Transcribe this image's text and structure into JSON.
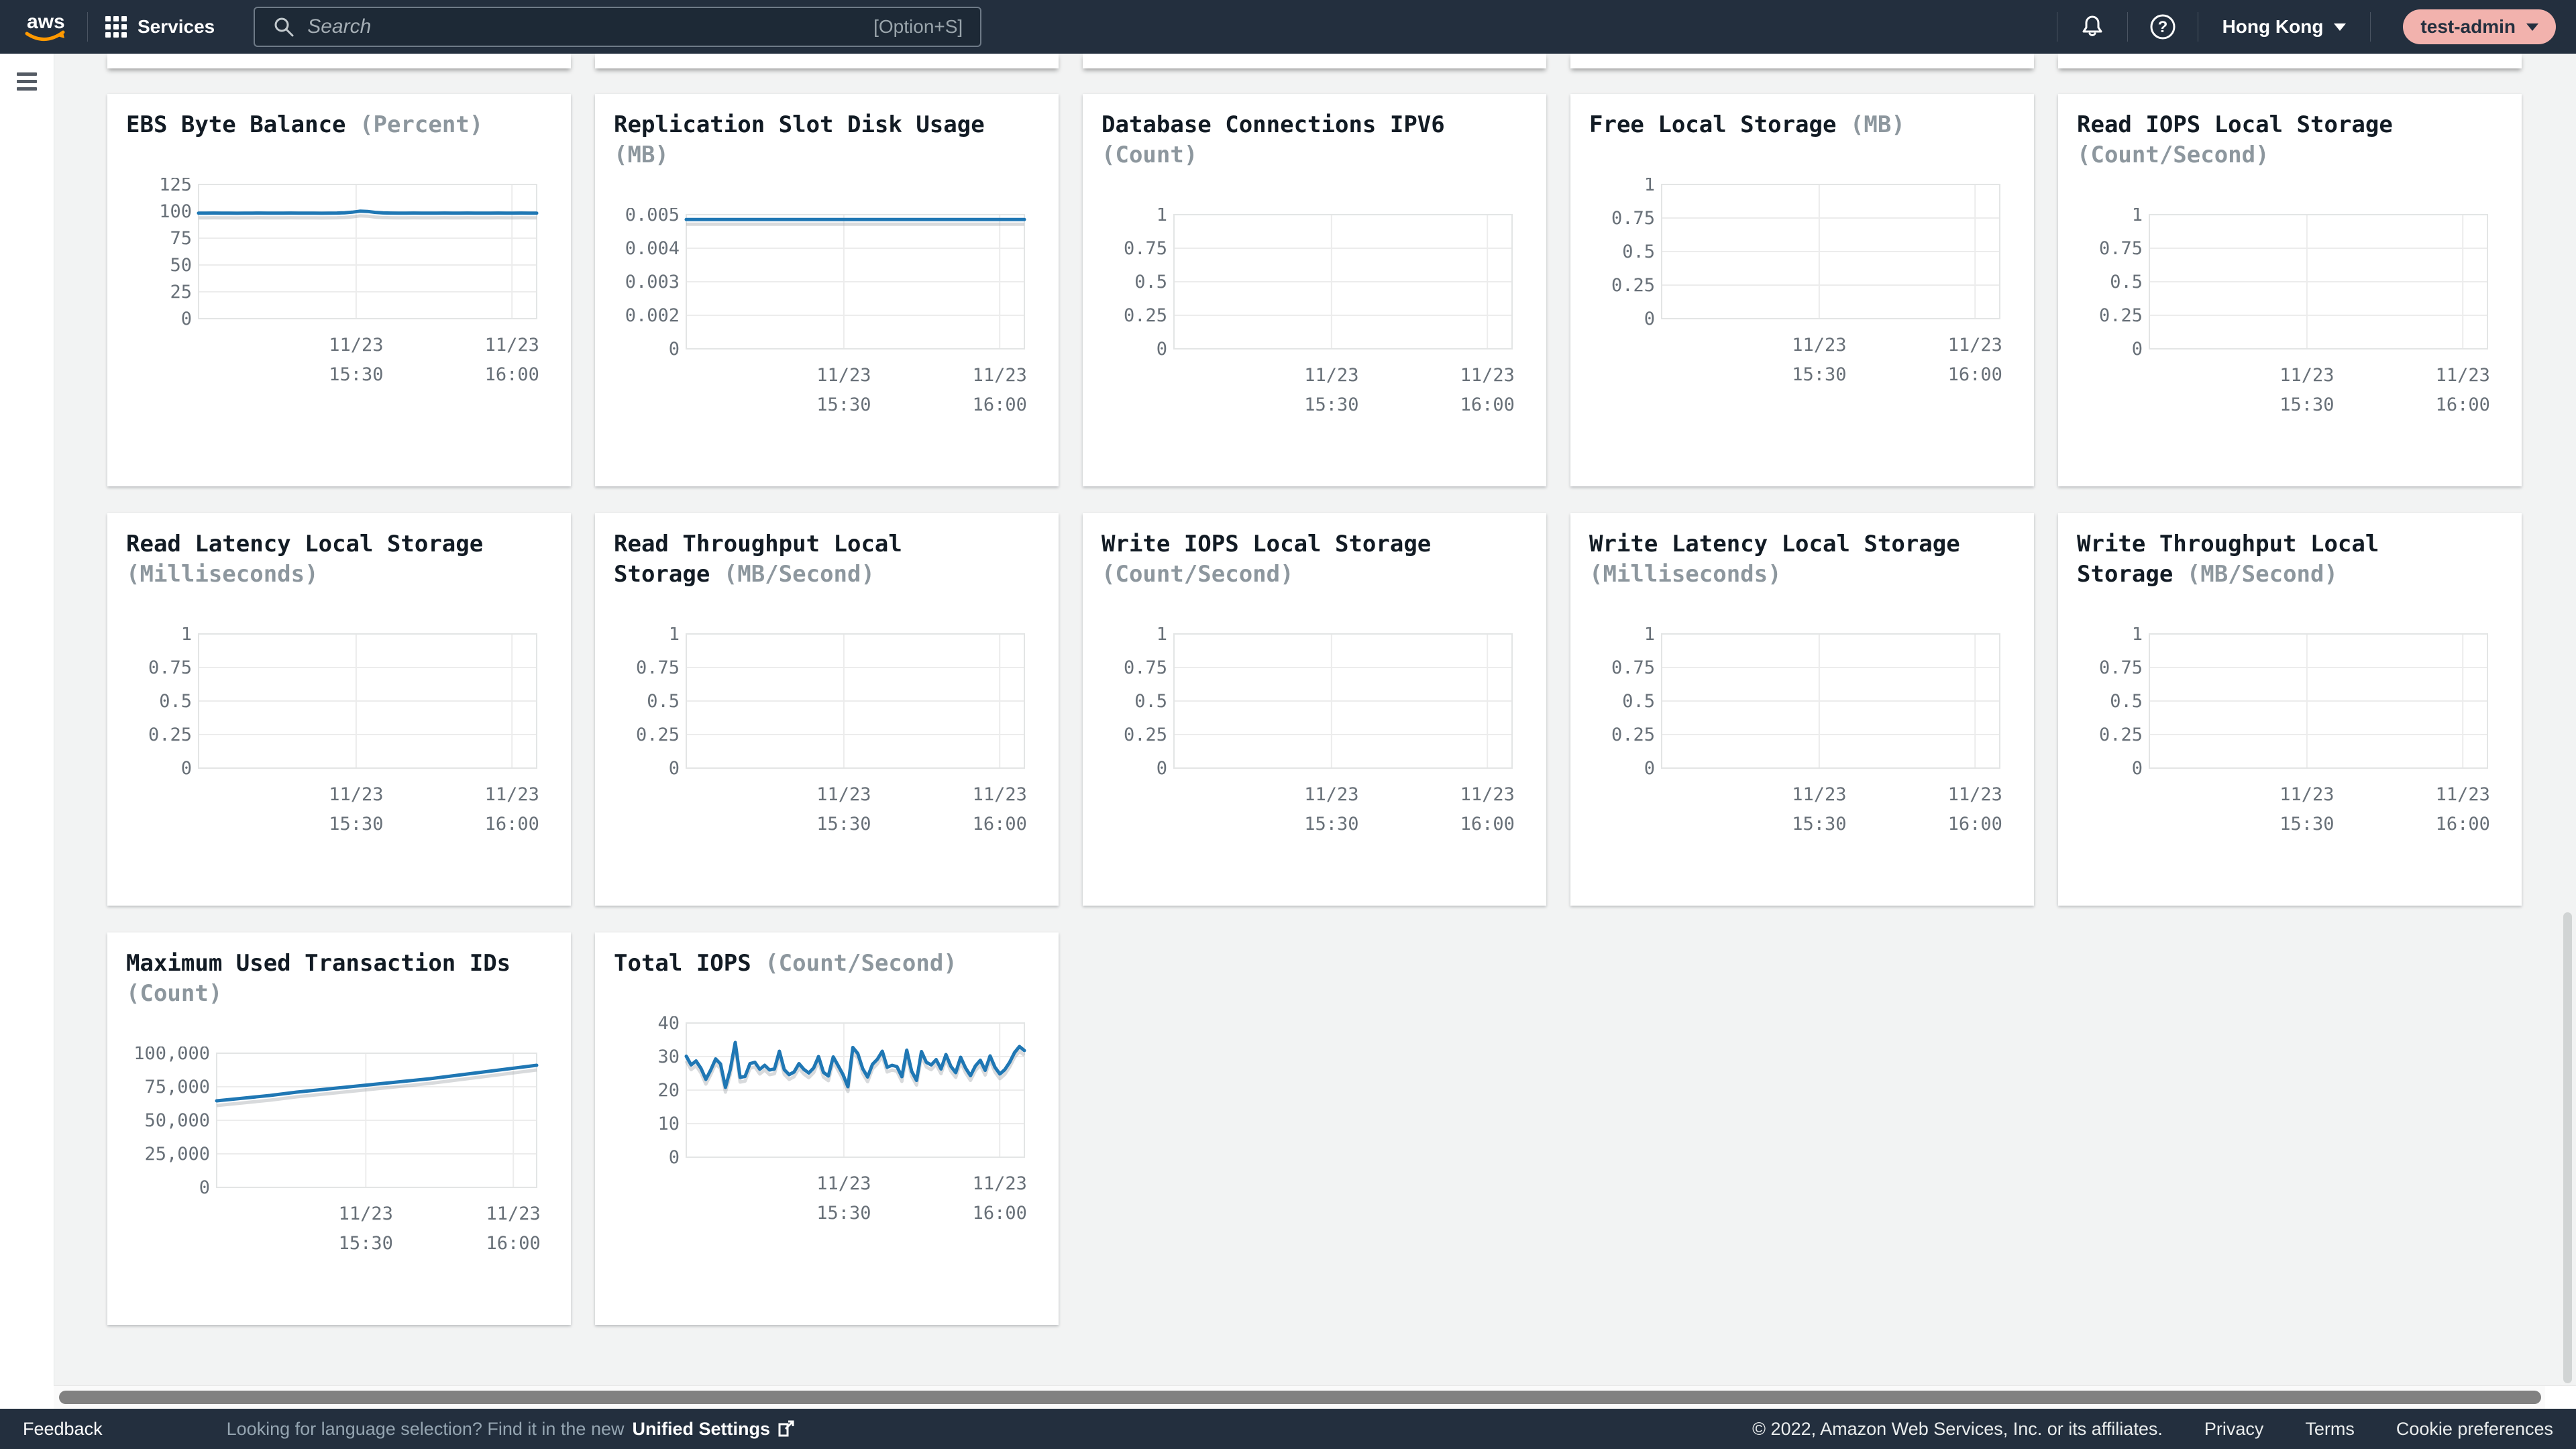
{
  "header": {
    "logo": "aws",
    "services_label": "Services",
    "search_placeholder": "Search",
    "search_shortcut": "[Option+S]",
    "region": "Hong Kong",
    "user": "test-admin"
  },
  "footer": {
    "feedback": "Feedback",
    "language_notice": "Looking for language selection? Find it in the new",
    "unified_settings": "Unified Settings",
    "copyright": "© 2022, Amazon Web Services, Inc. or its affiliates.",
    "links": [
      "Privacy",
      "Terms",
      "Cookie preferences"
    ]
  },
  "colors": {
    "header_bg": "#232f3e",
    "page_bg": "#f2f3f3",
    "card_bg": "#ffffff",
    "line_blue": "#1f77b4",
    "aws_orange": "#ff9900",
    "user_pill_bg": "#f2b2ad",
    "grid_line": "#ececec",
    "axis_text": "#687078",
    "title_text": "#121b24",
    "unit_text": "#8d979e"
  },
  "x_time_labels": [
    [
      "11/23",
      "15:30"
    ],
    [
      "11/23",
      "16:00"
    ]
  ],
  "chart_data": [
    {
      "type": "line",
      "title": "EBS Byte Balance",
      "unit": "Percent",
      "y_ticks": [
        "125",
        "100",
        "75",
        "50",
        "25",
        "0"
      ],
      "ymax": 125,
      "x_labels": [
        [
          "11/23",
          "15:30"
        ],
        [
          "11/23",
          "16:00"
        ]
      ],
      "values": [
        98.3,
        98.3,
        98.4,
        98.3,
        98.3,
        98.2,
        98.3,
        98.3,
        98.4,
        98.3,
        98.3,
        98.3,
        98.4,
        98.3,
        98.3,
        98.3,
        98.2,
        98.3,
        98.4,
        98.6,
        99.2,
        100.1,
        99.9,
        99.0,
        98.5,
        98.4,
        98.3,
        98.3,
        98.4,
        98.3,
        98.3,
        98.3,
        98.4,
        98.3,
        98.3,
        98.4,
        98.3,
        98.3,
        98.3,
        98.4,
        98.3,
        98.3,
        98.4,
        98.3,
        98.3
      ]
    },
    {
      "type": "line",
      "title": "Replication Slot Disk Usage",
      "unit": "MB",
      "y_ticks": [
        "0.005",
        "0.004",
        "0.003",
        "0.002",
        "0"
      ],
      "ymax": 0.005,
      "x_labels": [
        [
          "11/23",
          "15:30"
        ],
        [
          "11/23",
          "16:00"
        ]
      ],
      "values": [
        0.00482,
        0.00482,
        0.00482,
        0.00482,
        0.00482,
        0.00482,
        0.00482,
        0.00482,
        0.00482,
        0.00482
      ]
    },
    {
      "type": "line",
      "title": "Database Connections IPV6",
      "unit": "Count",
      "y_ticks": [
        "1",
        "0.75",
        "0.5",
        "0.25",
        "0"
      ],
      "ymax": 1,
      "x_labels": [
        [
          "11/23",
          "15:30"
        ],
        [
          "11/23",
          "16:00"
        ]
      ],
      "values": []
    },
    {
      "type": "line",
      "title": "Free Local Storage",
      "unit": "MB",
      "y_ticks": [
        "1",
        "0.75",
        "0.5",
        "0.25",
        "0"
      ],
      "ymax": 1,
      "x_labels": [
        [
          "11/23",
          "15:30"
        ],
        [
          "11/23",
          "16:00"
        ]
      ],
      "values": []
    },
    {
      "type": "line",
      "title": "Read IOPS Local Storage",
      "unit": "Count/Second",
      "y_ticks": [
        "1",
        "0.75",
        "0.5",
        "0.25",
        "0"
      ],
      "ymax": 1,
      "x_labels": [
        [
          "11/23",
          "15:30"
        ],
        [
          "11/23",
          "16:00"
        ]
      ],
      "values": []
    },
    {
      "type": "line",
      "title": "Read Latency Local Storage",
      "unit": "Milliseconds",
      "y_ticks": [
        "1",
        "0.75",
        "0.5",
        "0.25",
        "0"
      ],
      "ymax": 1,
      "x_labels": [
        [
          "11/23",
          "15:30"
        ],
        [
          "11/23",
          "16:00"
        ]
      ],
      "values": []
    },
    {
      "type": "line",
      "title": "Read Throughput Local Storage",
      "unit": "MB/Second",
      "y_ticks": [
        "1",
        "0.75",
        "0.5",
        "0.25",
        "0"
      ],
      "ymax": 1,
      "x_labels": [
        [
          "11/23",
          "15:30"
        ],
        [
          "11/23",
          "16:00"
        ]
      ],
      "values": []
    },
    {
      "type": "line",
      "title": "Write IOPS Local Storage",
      "unit": "Count/Second",
      "y_ticks": [
        "1",
        "0.75",
        "0.5",
        "0.25",
        "0"
      ],
      "ymax": 1,
      "x_labels": [
        [
          "11/23",
          "15:30"
        ],
        [
          "11/23",
          "16:00"
        ]
      ],
      "values": []
    },
    {
      "type": "line",
      "title": "Write Latency Local Storage",
      "unit": "Milliseconds",
      "y_ticks": [
        "1",
        "0.75",
        "0.5",
        "0.25",
        "0"
      ],
      "ymax": 1,
      "x_labels": [
        [
          "11/23",
          "15:30"
        ],
        [
          "11/23",
          "16:00"
        ]
      ],
      "values": []
    },
    {
      "type": "line",
      "title": "Write Throughput Local Storage",
      "unit": "MB/Second",
      "y_ticks": [
        "1",
        "0.75",
        "0.5",
        "0.25",
        "0"
      ],
      "ymax": 1,
      "x_labels": [
        [
          "11/23",
          "15:30"
        ],
        [
          "11/23",
          "16:00"
        ]
      ],
      "values": []
    },
    {
      "type": "line",
      "title": "Maximum Used Transaction IDs",
      "unit": "Count",
      "y_ticks": [
        "100,000",
        "75,000",
        "50,000",
        "25,000",
        "0"
      ],
      "ymax": 100000,
      "plot_left": 135,
      "x_labels": [
        [
          "11/23",
          "15:30"
        ],
        [
          "11/23",
          "16:00"
        ]
      ],
      "values": [
        64500,
        66500,
        68500,
        71000,
        73000,
        75000,
        77000,
        79000,
        81000,
        83500,
        86000,
        88500,
        91000
      ]
    },
    {
      "type": "line",
      "title": "Total IOPS",
      "unit": "Count/Second",
      "y_ticks": [
        "40",
        "30",
        "20",
        "10",
        "0"
      ],
      "ymax": 40,
      "x_labels": [
        [
          "11/23",
          "15:30"
        ],
        [
          "11/23",
          "16:00"
        ]
      ],
      "values": [
        30.1,
        27.5,
        28.7,
        26.5,
        23.2,
        26.0,
        29.3,
        27.8,
        20.8,
        26.2,
        34.2,
        23.8,
        24.1,
        27.9,
        28.3,
        26.2,
        27.4,
        26.0,
        26.3,
        31.6,
        26.1,
        24.6,
        25.4,
        27.9,
        26.2,
        25.1,
        26.6,
        30.0,
        25.3,
        24.2,
        29.9,
        27.3,
        24.6,
        21.0,
        32.7,
        30.9,
        26.4,
        23.9,
        27.7,
        29.2,
        31.6,
        26.8,
        27.4,
        27.0,
        24.0,
        31.9,
        25.6,
        22.9,
        31.5,
        28.3,
        27.5,
        29.1,
        26.3,
        30.6,
        27.1,
        25.2,
        29.8,
        26.6,
        24.3,
        27.2,
        28.9,
        25.9,
        30.2,
        26.8,
        24.8,
        26.1,
        28.3,
        31.2,
        33.0,
        31.8
      ]
    }
  ]
}
